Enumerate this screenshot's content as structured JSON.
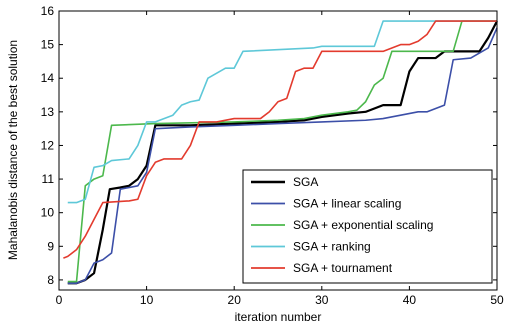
{
  "chart_data": {
    "type": "line",
    "xlabel": "iteration number",
    "ylabel": "Mahalanobis distance of the best solution",
    "xlim": [
      0,
      50
    ],
    "ylim": [
      7.7,
      16
    ],
    "xticks": [
      "0",
      "10",
      "20",
      "30",
      "40",
      "50"
    ],
    "yticks": [
      "8",
      "9",
      "10",
      "11",
      "12",
      "13",
      "14",
      "15",
      "16"
    ],
    "grid": false,
    "legend_position": "bottom-right",
    "series": [
      {
        "name": "SGA",
        "color": "#000000",
        "points": [
          [
            1,
            7.9
          ],
          [
            2,
            7.9
          ],
          [
            3,
            8.0
          ],
          [
            4,
            8.2
          ],
          [
            5,
            9.5
          ],
          [
            5.8,
            10.7
          ],
          [
            7,
            10.75
          ],
          [
            8,
            10.8
          ],
          [
            9,
            11.0
          ],
          [
            10,
            11.4
          ],
          [
            11,
            12.6
          ],
          [
            15,
            12.6
          ],
          [
            20,
            12.65
          ],
          [
            25,
            12.7
          ],
          [
            28,
            12.75
          ],
          [
            30,
            12.85
          ],
          [
            33,
            12.95
          ],
          [
            35,
            13.0
          ],
          [
            36,
            13.1
          ],
          [
            37,
            13.2
          ],
          [
            39,
            13.2
          ],
          [
            40,
            14.2
          ],
          [
            41,
            14.6
          ],
          [
            43,
            14.6
          ],
          [
            44,
            14.8
          ],
          [
            48,
            14.8
          ],
          [
            49,
            15.2
          ],
          [
            50,
            15.7
          ]
        ]
      },
      {
        "name": "SGA + linear scaling",
        "color": "#3c4fa8",
        "points": [
          [
            1,
            7.9
          ],
          [
            2,
            7.9
          ],
          [
            3,
            8.0
          ],
          [
            4,
            8.5
          ],
          [
            5,
            8.6
          ],
          [
            6,
            8.8
          ],
          [
            7,
            10.7
          ],
          [
            9,
            10.8
          ],
          [
            10,
            11.2
          ],
          [
            11,
            12.5
          ],
          [
            15,
            12.55
          ],
          [
            20,
            12.6
          ],
          [
            25,
            12.65
          ],
          [
            30,
            12.7
          ],
          [
            35,
            12.75
          ],
          [
            37,
            12.8
          ],
          [
            39,
            12.9
          ],
          [
            41,
            13.0
          ],
          [
            42,
            13.0
          ],
          [
            43,
            13.1
          ],
          [
            44,
            13.2
          ],
          [
            45,
            14.55
          ],
          [
            47,
            14.6
          ],
          [
            49,
            14.9
          ],
          [
            50,
            15.5
          ]
        ]
      },
      {
        "name": "SGA + exponential scaling",
        "color": "#4cb84c",
        "points": [
          [
            1,
            7.95
          ],
          [
            2,
            7.95
          ],
          [
            3,
            10.8
          ],
          [
            4,
            11.0
          ],
          [
            5,
            11.1
          ],
          [
            6,
            12.6
          ],
          [
            11,
            12.65
          ],
          [
            20,
            12.7
          ],
          [
            25,
            12.75
          ],
          [
            28,
            12.8
          ],
          [
            30,
            12.9
          ],
          [
            33,
            13.0
          ],
          [
            34,
            13.05
          ],
          [
            35,
            13.3
          ],
          [
            36,
            13.8
          ],
          [
            37,
            14.0
          ],
          [
            38,
            14.8
          ],
          [
            45,
            14.8
          ],
          [
            46,
            15.7
          ],
          [
            50,
            15.7
          ]
        ]
      },
      {
        "name": "SGA + ranking",
        "color": "#5ec8d8",
        "points": [
          [
            1,
            10.3
          ],
          [
            2,
            10.3
          ],
          [
            3,
            10.4
          ],
          [
            4,
            11.35
          ],
          [
            5,
            11.4
          ],
          [
            6,
            11.55
          ],
          [
            8,
            11.6
          ],
          [
            9,
            12.0
          ],
          [
            10,
            12.7
          ],
          [
            11,
            12.7
          ],
          [
            13,
            12.9
          ],
          [
            14,
            13.2
          ],
          [
            15,
            13.3
          ],
          [
            16,
            13.35
          ],
          [
            17,
            14.0
          ],
          [
            19,
            14.3
          ],
          [
            20,
            14.3
          ],
          [
            21,
            14.8
          ],
          [
            29,
            14.9
          ],
          [
            30,
            14.95
          ],
          [
            36,
            14.95
          ],
          [
            37,
            15.7
          ],
          [
            50,
            15.7
          ]
        ]
      },
      {
        "name": "SGA + tournament",
        "color": "#e33b2e",
        "points": [
          [
            0.5,
            8.65
          ],
          [
            1,
            8.7
          ],
          [
            2,
            8.9
          ],
          [
            3,
            9.3
          ],
          [
            4,
            9.8
          ],
          [
            5,
            10.3
          ],
          [
            8,
            10.35
          ],
          [
            9,
            10.4
          ],
          [
            10,
            11.1
          ],
          [
            11,
            11.5
          ],
          [
            12,
            11.6
          ],
          [
            14,
            11.6
          ],
          [
            15,
            12.0
          ],
          [
            16,
            12.7
          ],
          [
            18,
            12.7
          ],
          [
            20,
            12.8
          ],
          [
            23,
            12.8
          ],
          [
            24,
            13.0
          ],
          [
            25,
            13.3
          ],
          [
            26,
            13.4
          ],
          [
            27,
            14.2
          ],
          [
            28,
            14.3
          ],
          [
            29,
            14.3
          ],
          [
            30,
            14.8
          ],
          [
            37,
            14.8
          ],
          [
            38,
            14.9
          ],
          [
            39,
            15.0
          ],
          [
            40,
            15.0
          ],
          [
            41,
            15.1
          ],
          [
            42,
            15.3
          ],
          [
            43,
            15.7
          ],
          [
            50,
            15.7
          ]
        ]
      }
    ]
  }
}
